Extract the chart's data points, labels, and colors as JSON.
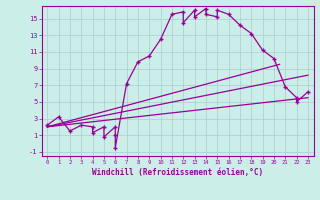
{
  "xlabel": "Windchill (Refroidissement éolien,°C)",
  "xlim": [
    -0.5,
    23.5
  ],
  "ylim": [
    -1.5,
    16.5
  ],
  "xticks": [
    0,
    1,
    2,
    3,
    4,
    5,
    6,
    7,
    8,
    9,
    10,
    11,
    12,
    13,
    14,
    15,
    16,
    17,
    18,
    19,
    20,
    21,
    22,
    23
  ],
  "yticks": [
    -1,
    1,
    3,
    5,
    7,
    9,
    11,
    13,
    15
  ],
  "bg_color": "#cceee8",
  "grid_color": "#aacccc",
  "line_color": "#990099",
  "main_curve_x": [
    0,
    1,
    2,
    3,
    4,
    4,
    5,
    5,
    6,
    6,
    6,
    7,
    8,
    9,
    10,
    11,
    12,
    12,
    13,
    13,
    14,
    14,
    15,
    15,
    16,
    17,
    18,
    19,
    20,
    21,
    22,
    22,
    23
  ],
  "main_curve_y": [
    2.2,
    3.2,
    1.5,
    2.2,
    2.0,
    1.3,
    2.0,
    0.8,
    2.0,
    1.0,
    -0.5,
    7.2,
    9.8,
    10.5,
    12.5,
    15.5,
    15.8,
    14.5,
    16.0,
    15.2,
    16.2,
    15.5,
    15.2,
    16.0,
    15.5,
    14.2,
    13.2,
    11.2,
    10.2,
    6.8,
    5.5,
    5.0,
    6.2
  ],
  "reg_line1_x": [
    0,
    20.5
  ],
  "reg_line1_y": [
    2.0,
    9.5
  ],
  "reg_line2_x": [
    0,
    23
  ],
  "reg_line2_y": [
    2.0,
    8.2
  ],
  "reg_line3_x": [
    0,
    23
  ],
  "reg_line3_y": [
    2.0,
    5.5
  ],
  "xlabel_fontsize": 5.5,
  "tick_fontsize": 4.8
}
